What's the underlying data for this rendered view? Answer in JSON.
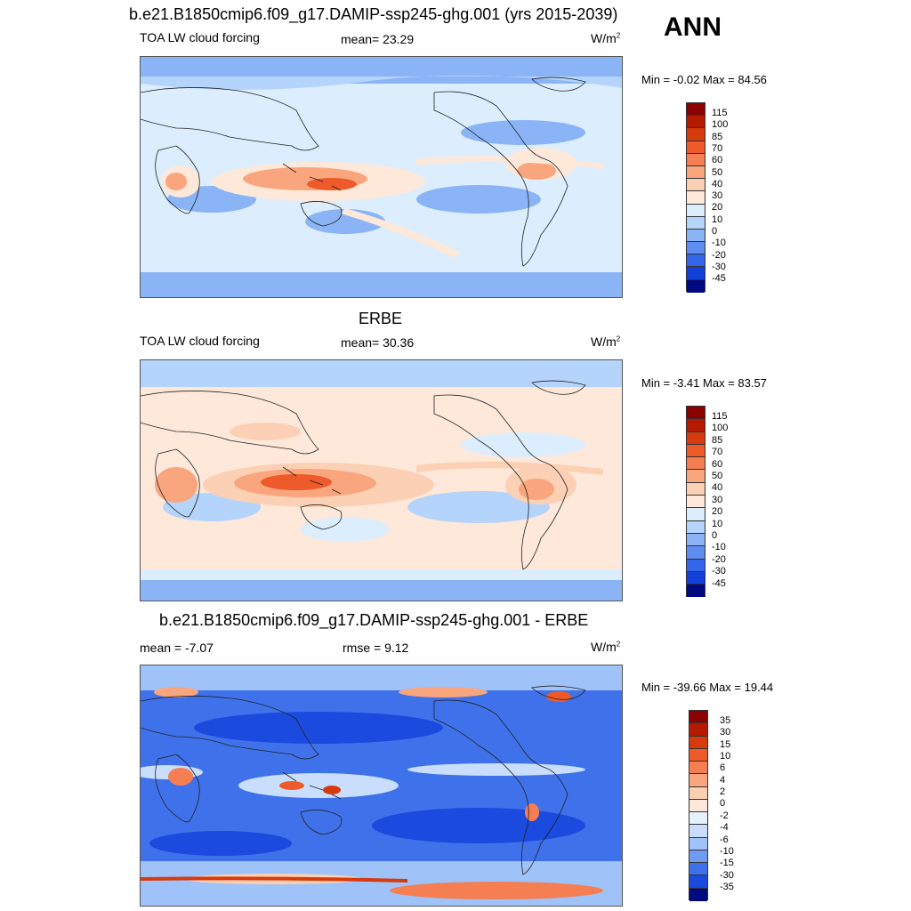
{
  "header": {
    "main_title": "b.e21.B1850cmip6.f09_g17.DAMIP-ssp245-ghg.001 (yrs 2015-2039)",
    "season": "ANN"
  },
  "panels": [
    {
      "id": "model",
      "heading": "",
      "left_label": "TOA LW cloud forcing",
      "center_label": "mean=  23.29",
      "units_base": "W/m",
      "units_exp": "2",
      "minmax": "Min =  -0.02 Max =  84.56",
      "colorbar_labels": [
        "115",
        "100",
        "85",
        "70",
        "60",
        "50",
        "40",
        "30",
        "20",
        "10",
        "0",
        "-10",
        "-20",
        "-30",
        "-45"
      ]
    },
    {
      "id": "obs",
      "heading": "ERBE",
      "left_label": "TOA LW cloud forcing",
      "center_label": "mean=  30.36",
      "units_base": "W/m",
      "units_exp": "2",
      "minmax": "Min =  -3.41 Max =  83.57",
      "colorbar_labels": [
        "115",
        "100",
        "85",
        "70",
        "60",
        "50",
        "40",
        "30",
        "20",
        "10",
        "0",
        "-10",
        "-20",
        "-30",
        "-45"
      ]
    },
    {
      "id": "diff",
      "heading": "b.e21.B1850cmip6.f09_g17.DAMIP-ssp245-ghg.001 - ERBE",
      "left_label": "mean =  -7.07",
      "center_label": "rmse =   9.12",
      "units_base": "W/m",
      "units_exp": "2",
      "minmax": "Min = -39.66 Max =  19.44",
      "colorbar_labels": [
        "35",
        "30",
        "15",
        "10",
        "6",
        "4",
        "2",
        "0",
        "-2",
        "-4",
        "-6",
        "-10",
        "-15",
        "-30",
        "-35"
      ]
    }
  ],
  "colors": {
    "field_colors": [
      "#8b0000",
      "#b31a00",
      "#d73a0c",
      "#ee5a2a",
      "#f57e52",
      "#f9a57e",
      "#fcd0b4",
      "#fde8da",
      "#dceefd",
      "#b5d4fb",
      "#8bb4f7",
      "#5f8ef2",
      "#3366e8",
      "#1240d8",
      "#0b22b0",
      "#000a80"
    ],
    "diff_colors": [
      "#8b0000",
      "#b31a00",
      "#d73a0c",
      "#ee5a2a",
      "#f57e52",
      "#f9a57e",
      "#fcd0b4",
      "#fde8da",
      "#e6f1fe",
      "#c9defc",
      "#9fc2f8",
      "#6f9cf2",
      "#3f72ea",
      "#1a4ade",
      "#0b26b5",
      "#000a80"
    ]
  }
}
